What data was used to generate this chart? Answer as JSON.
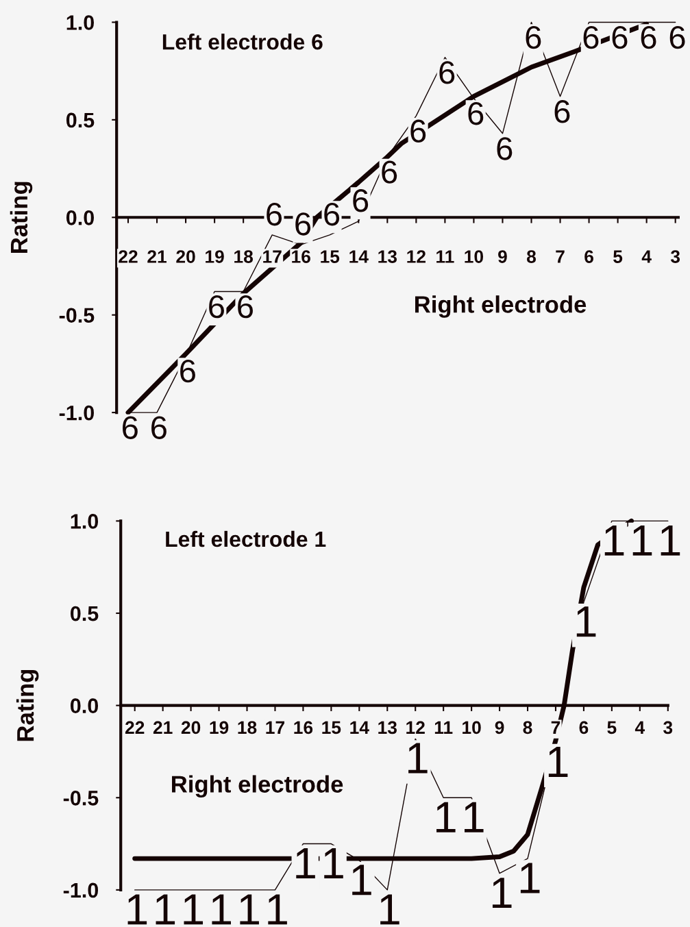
{
  "chart_data": [
    {
      "type": "line",
      "title": "Left electrode 6",
      "xlabel": "Right electrode",
      "ylabel": "Rating",
      "x": [
        22,
        21,
        20,
        19,
        18,
        17,
        16,
        15,
        14,
        13,
        12,
        11,
        10,
        9,
        8,
        7,
        6,
        5,
        4,
        3
      ],
      "xlim": [
        22.4,
        2.9
      ],
      "xticks": [
        22,
        21,
        20,
        19,
        18,
        17,
        16,
        15,
        14,
        13,
        12,
        11,
        10,
        9,
        8,
        7,
        6,
        5,
        4,
        3
      ],
      "ylim": [
        -1,
        1
      ],
      "yticks": [
        {
          "value": -1,
          "label": "-1.0"
        },
        {
          "value": -0.5,
          "label": "-0.5"
        },
        {
          "value": 0,
          "label": "0.0"
        },
        {
          "value": 0.5,
          "label": "0.5"
        },
        {
          "value": 1,
          "label": "1.0"
        }
      ],
      "grid": false,
      "legend": false,
      "series": [
        {
          "name": "6",
          "color": "#140404",
          "values": [
            -1.0,
            -1.0,
            -0.71,
            -0.38,
            -0.38,
            -0.09,
            -0.14,
            -0.09,
            -0.02,
            0.31,
            0.52,
            0.82,
            0.61,
            0.43,
            1.0,
            0.62,
            1.0,
            1.0,
            1.0,
            1.0
          ]
        },
        {
          "type": "line",
          "color": "#140404",
          "x": [
            22,
            20,
            18,
            16,
            15.45,
            14,
            13,
            12.5,
            10,
            8,
            6.5,
            4
          ],
          "values": [
            -1.0,
            -0.7,
            -0.39,
            -0.13,
            0.0,
            0.18,
            0.31,
            0.38,
            0.62,
            0.77,
            0.85,
            0.99
          ]
        }
      ]
    },
    {
      "type": "line",
      "title": "Left electrode 1",
      "xlabel": "Right electrode",
      "ylabel": "Rating",
      "x": [
        22,
        21,
        20,
        19,
        18,
        17,
        16,
        15,
        14,
        13,
        12,
        11,
        10,
        9,
        8,
        7,
        6,
        5,
        4,
        3
      ],
      "xlim": [
        22.5,
        3
      ],
      "xticks": [
        22,
        21,
        20,
        19,
        18,
        17,
        16,
        15,
        14,
        13,
        12,
        11,
        10,
        9,
        8,
        7,
        6,
        5,
        4,
        3
      ],
      "ylim": [
        -1,
        1
      ],
      "yticks": [
        {
          "value": -1,
          "label": "-1.0"
        },
        {
          "value": -0.5,
          "label": "-0.5"
        },
        {
          "value": 0,
          "label": "0.0"
        },
        {
          "value": 0.5,
          "label": "0.5"
        },
        {
          "value": 1,
          "label": "1.0"
        }
      ],
      "grid": false,
      "legend": false,
      "series": [
        {
          "name": "1",
          "color": "#140404",
          "values": [
            -1.0,
            -1.0,
            -1.0,
            -1.0,
            -1.0,
            -1.0,
            -0.75,
            -0.75,
            -0.84,
            -1.0,
            -0.18,
            -0.5,
            -0.5,
            -0.91,
            -0.83,
            -0.2,
            0.56,
            1.0,
            1.0,
            1.0
          ]
        },
        {
          "type": "line",
          "color": "#140404",
          "x": [
            22,
            10,
            9,
            8.5,
            8,
            7.5,
            7,
            6.7,
            6.4,
            6,
            5.5,
            4.3
          ],
          "values": [
            -0.83,
            -0.83,
            -0.82,
            -0.79,
            -0.7,
            -0.45,
            -0.19,
            0.0,
            0.3,
            0.64,
            0.87,
            1.0
          ]
        }
      ]
    }
  ]
}
